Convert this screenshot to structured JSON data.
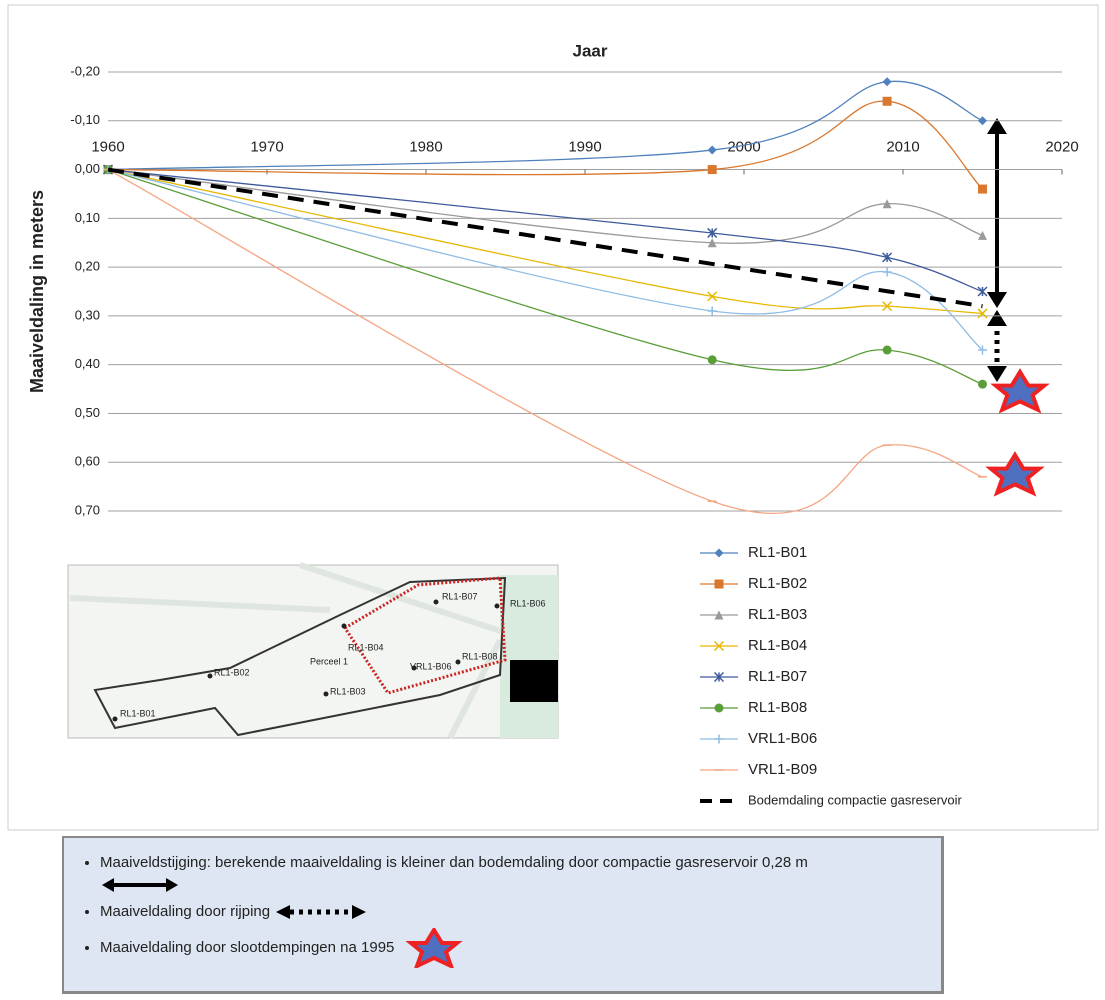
{
  "chart_data": {
    "type": "line",
    "x_label": "Jaar",
    "y_label": "Maaiveldaling in meters",
    "x": [
      1960,
      1998,
      2009,
      2015
    ],
    "xlim": [
      1960,
      2020
    ],
    "xticks": [
      1960,
      1970,
      1980,
      1990,
      2000,
      2010,
      2020
    ],
    "ylim": [
      -0.2,
      0.7
    ],
    "y_inverted": true,
    "yticks": [
      {
        "value": -0.2,
        "label": "-0,20"
      },
      {
        "value": -0.1,
        "label": "-0,10"
      },
      {
        "value": 0,
        "label": "0,00"
      },
      {
        "value": 0.1,
        "label": "0,10"
      },
      {
        "value": 0.2,
        "label": "0,20"
      },
      {
        "value": 0.3,
        "label": "0,30"
      },
      {
        "value": 0.4,
        "label": "0,40"
      },
      {
        "value": 0.5,
        "label": "0,50"
      },
      {
        "value": 0.6,
        "label": "0,60"
      },
      {
        "value": 0.7,
        "label": "0,70"
      }
    ],
    "grid": true,
    "legend": "lower right",
    "series": [
      {
        "name": "RL1-B01",
        "color": "#4f81bd",
        "marker": "diamond",
        "values": [
          0,
          -0.04,
          -0.18,
          -0.1
        ]
      },
      {
        "name": "RL1-B02",
        "color": "#d9772d",
        "marker": "square",
        "values": [
          0,
          0,
          -0.14,
          0.04
        ]
      },
      {
        "name": "RL1-B03",
        "color": "#9a9a9a",
        "marker": "triangle",
        "values": [
          0,
          0.15,
          0.07,
          0.135
        ]
      },
      {
        "name": "RL1-B04",
        "color": "#e6b800",
        "marker": "x",
        "values": [
          0,
          0.26,
          0.28,
          0.295
        ]
      },
      {
        "name": "RL1-B07",
        "color": "#3d5a9c",
        "marker": "star",
        "values": [
          0,
          0.13,
          0.18,
          0.25
        ]
      },
      {
        "name": "RL1-B08",
        "color": "#5a9e3a",
        "marker": "circle",
        "values": [
          0,
          0.39,
          0.37,
          0.44
        ]
      },
      {
        "name": "VRL1-B06",
        "color": "#8fbde6",
        "marker": "plus",
        "values": [
          0,
          0.29,
          0.21,
          0.37
        ]
      },
      {
        "name": "VRL1-B09",
        "color": "#f4a582",
        "marker": "dash",
        "values": [
          0,
          0.68,
          0.565,
          0.63
        ]
      },
      {
        "name": "Bodemdaling compactie gasreservoir",
        "color": "#000000",
        "marker": "none",
        "dashed": true,
        "x": [
          1960,
          2015
        ],
        "values": [
          0,
          0.28
        ]
      }
    ]
  },
  "map": {
    "labels": [
      "RL1-B01",
      "RL1-B02",
      "RL1-B03",
      "RL1-B04",
      "Perceel 1",
      "VRL1-B06",
      "RL1-B08",
      "RL1-B07",
      "RL1-B06"
    ]
  },
  "notes": [
    "Maaiveldstijging: berekende maaiveldaling is kleiner dan bodemdaling door compactie gasreservoir 0,28 m",
    "Maaiveldaling door rijping",
    "Maaiveldaling door slootdempingen na 1995"
  ]
}
